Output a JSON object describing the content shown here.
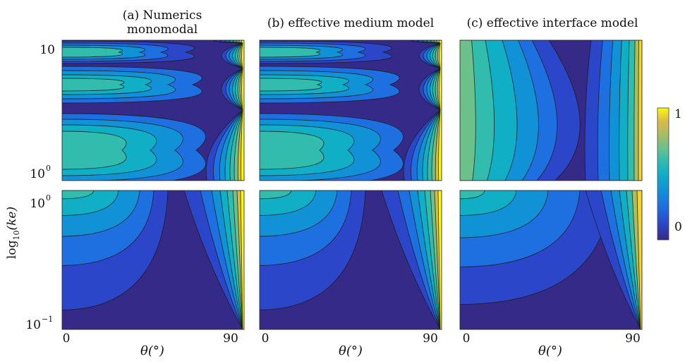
{
  "figure": {
    "ylabel_base": "log",
    "ylabel_sub": "10",
    "ylabel_arg": "(ke)",
    "colorbar": {
      "min_label": "0",
      "max_label": "1",
      "range": [
        0,
        1
      ],
      "colormap": "parula"
    }
  },
  "chart_data": [
    {
      "type": "contour",
      "title_lines": [
        "(a) Numerics",
        "monomodal"
      ],
      "xlabel": "θ(°)",
      "x_ticks": [
        "0",
        "90"
      ],
      "xlim": [
        0,
        90
      ],
      "rows": [
        {
          "y_ticks": [
            {
              "base": "10",
              "exp": ""
            },
            {
              "base": "10",
              "exp": "0"
            }
          ],
          "ylim": [
            1,
            10
          ],
          "scale": "log"
        },
        {
          "y_ticks": [
            {
              "base": "10",
              "exp": "0"
            },
            {
              "base": "10",
              "exp": "−1"
            }
          ],
          "ylim": [
            0.1,
            1
          ],
          "scale": "log"
        }
      ]
    },
    {
      "type": "contour",
      "title_lines": [
        "(b) effective medium model"
      ],
      "xlabel": "θ(°)",
      "x_ticks": [
        "0",
        "90"
      ],
      "xlim": [
        0,
        90
      ],
      "rows": [
        {
          "y_ticks": [],
          "ylim": [
            1,
            10
          ],
          "scale": "log"
        },
        {
          "y_ticks": [],
          "ylim": [
            0.1,
            1
          ],
          "scale": "log"
        }
      ]
    },
    {
      "type": "contour",
      "title_lines": [
        "(c) effective interface model"
      ],
      "xlabel": "θ(°)",
      "x_ticks": [
        "0",
        "90"
      ],
      "xlim": [
        0,
        90
      ],
      "rows": [
        {
          "y_ticks": [],
          "ylim": [
            1,
            10
          ],
          "scale": "log"
        },
        {
          "y_ticks": [],
          "ylim": [
            0.1,
            1
          ],
          "scale": "log"
        }
      ]
    }
  ],
  "colors": {
    "c0": "#352a87",
    "c1": "#2c46c9",
    "c2": "#1e6fe0",
    "c3": "#1192d6",
    "c4": "#10afc6",
    "c5": "#31bcad",
    "c6": "#6cc08a",
    "c7": "#a9bd63",
    "c8": "#dcb948",
    "c9": "#f9d22e",
    "c10": "#f9fb0e"
  }
}
